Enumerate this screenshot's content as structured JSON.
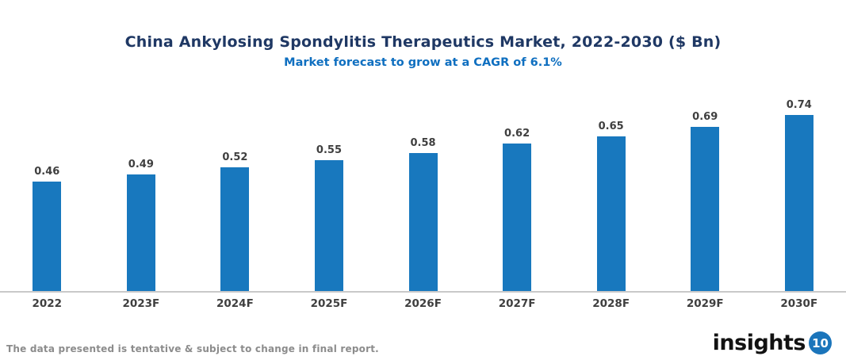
{
  "header": {
    "title": "China Ankylosing Spondylitis Therapeutics Market, 2022-2030 ($ Bn)",
    "subtitle": "Market forecast to grow at a CAGR of 6.1%"
  },
  "chart_data": {
    "type": "bar",
    "title": "China Ankylosing Spondylitis Therapeutics Market, 2022-2030 ($ Bn)",
    "subtitle": "Market forecast to grow at a CAGR of 6.1%",
    "categories": [
      "2022",
      "2023F",
      "2024F",
      "2025F",
      "2026F",
      "2027F",
      "2028F",
      "2029F",
      "2030F"
    ],
    "values": [
      0.46,
      0.49,
      0.52,
      0.55,
      0.58,
      0.62,
      0.65,
      0.69,
      0.74
    ],
    "xlabel": "",
    "ylabel": "",
    "ylim": [
      0,
      0.9
    ],
    "grid": false,
    "legend": false,
    "data_labels": true,
    "bar_color": "#1878be"
  },
  "footer": {
    "note": "The data presented is tentative & subject to change in final report.",
    "logo_text": "insights",
    "logo_badge": "10"
  },
  "colors": {
    "title": "#1f3864",
    "subtitle": "#0f6fc0",
    "bar": "#1878be",
    "label": "#3f3f3f",
    "axis_line": "#c9c9c9",
    "note": "#8c8c8c",
    "logo_blue": "#1b75bb"
  }
}
